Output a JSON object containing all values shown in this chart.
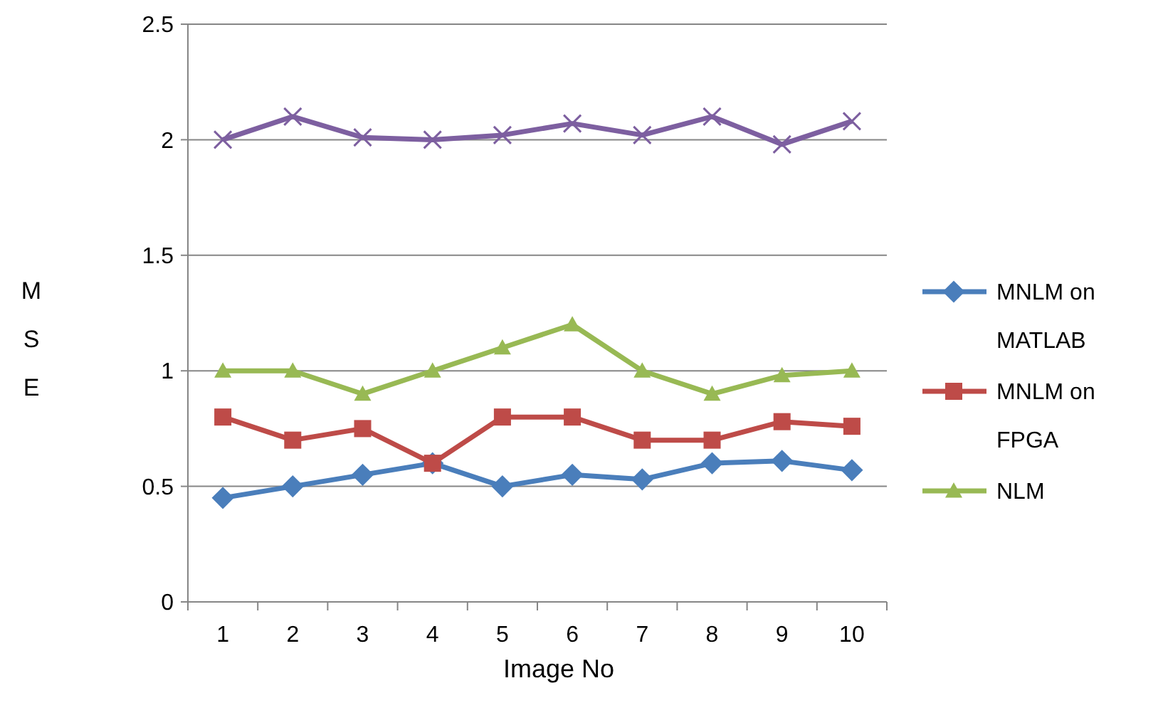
{
  "chart_data": {
    "type": "line",
    "xlabel": "Image No",
    "ylabel": "MSE",
    "categories": [
      "1",
      "2",
      "3",
      "4",
      "5",
      "6",
      "7",
      "8",
      "9",
      "10"
    ],
    "ylim": [
      0,
      2.5
    ],
    "yticks": [
      0,
      0.5,
      1,
      1.5,
      2,
      2.5
    ],
    "grid": "y",
    "legend": "right",
    "series": [
      {
        "name": "MNLM on MATLAB",
        "color": "#4a7ebb",
        "marker": "diamond",
        "values": [
          0.45,
          0.5,
          0.55,
          0.6,
          0.5,
          0.55,
          0.53,
          0.6,
          0.61,
          0.57
        ]
      },
      {
        "name": "MNLM on FPGA",
        "color": "#be4b48",
        "marker": "square",
        "values": [
          0.8,
          0.7,
          0.75,
          0.6,
          0.8,
          0.8,
          0.7,
          0.7,
          0.78,
          0.76
        ]
      },
      {
        "name": "NLM",
        "color": "#98b954",
        "marker": "triangle",
        "values": [
          1.0,
          1.0,
          0.9,
          1.0,
          1.1,
          1.2,
          1.0,
          0.9,
          0.98,
          1.0
        ]
      },
      {
        "color": "#7d5fa0",
        "marker": "cross",
        "values": [
          2.0,
          2.1,
          2.01,
          2.0,
          2.02,
          2.07,
          2.02,
          2.1,
          1.98,
          2.08
        ]
      }
    ]
  }
}
